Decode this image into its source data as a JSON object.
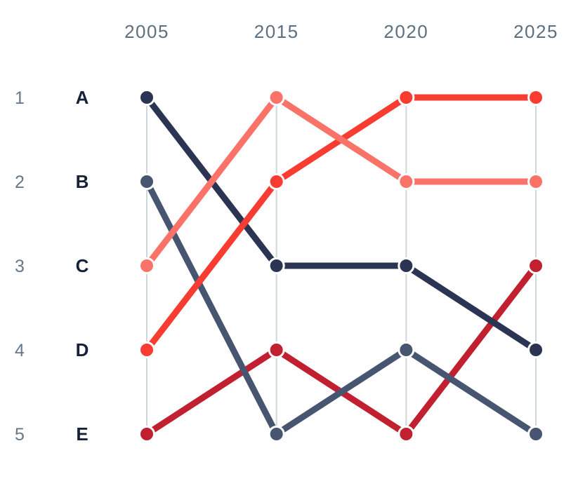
{
  "chart_data": {
    "type": "line",
    "subtype": "bump-rank-chart",
    "title": "",
    "x": [
      "2005",
      "2015",
      "2020",
      "2025"
    ],
    "rank_axis_ticks": [
      "1",
      "2",
      "3",
      "4",
      "5"
    ],
    "row_labels": [
      "A",
      "B",
      "C",
      "D",
      "E"
    ],
    "series": [
      {
        "name": "A",
        "color": "#2b3452",
        "ranks": [
          1,
          3,
          3,
          4
        ]
      },
      {
        "name": "B",
        "color": "#475571",
        "ranks": [
          2,
          5,
          4,
          5
        ]
      },
      {
        "name": "C",
        "color": "#fb7268",
        "ranks": [
          3,
          1,
          2,
          2
        ]
      },
      {
        "name": "D",
        "color": "#f93c31",
        "ranks": [
          4,
          2,
          1,
          1
        ]
      },
      {
        "name": "E",
        "color": "#c0202f",
        "ranks": [
          5,
          4,
          5,
          3
        ]
      }
    ],
    "draw_order": [
      "E",
      "A",
      "B",
      "D",
      "C"
    ],
    "ylim": [
      1,
      5
    ],
    "grid": "vertical-only",
    "legend_position": "none",
    "colors": {
      "background": "#ffffff",
      "gridline": "#cfd7da",
      "year_label": "#5c7080",
      "rank_number": "#66788a",
      "row_letter": "#142138",
      "dot_outline": "#ffffff"
    }
  }
}
